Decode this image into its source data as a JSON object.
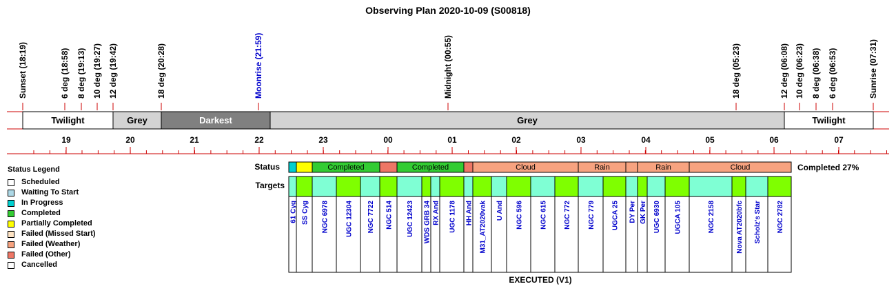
{
  "title": "Observing Plan 2020-10-09 (S00818)",
  "events": [
    {
      "label": "Sunset (18:19)",
      "color": "#000000"
    },
    {
      "label": "6 deg (18:58)",
      "color": "#000000"
    },
    {
      "label": "8 deg (19:13)",
      "color": "#000000"
    },
    {
      "label": "10 deg (19:27)",
      "color": "#000000"
    },
    {
      "label": "12 deg (19:42)",
      "color": "#000000"
    },
    {
      "label": "18 deg (20:28)",
      "color": "#000000"
    },
    {
      "label": "Moonrise (21:59)",
      "color": "#0000cc"
    },
    {
      "label": "Midnight (00:55)",
      "color": "#000000"
    },
    {
      "label": "18 deg (05:23)",
      "color": "#000000"
    },
    {
      "label": "12 deg (06:08)",
      "color": "#000000"
    },
    {
      "label": "10 deg (06:23)",
      "color": "#000000"
    },
    {
      "label": "8 deg (06:38)",
      "color": "#000000"
    },
    {
      "label": "6 deg (06:53)",
      "color": "#000000"
    },
    {
      "label": "Sunrise (07:31)",
      "color": "#000000"
    }
  ],
  "bands": [
    {
      "label": "Twilight",
      "color": "#ffffff",
      "text_color": "#000000"
    },
    {
      "label": "Grey",
      "color": "#d3d3d3",
      "text_color": "#000000"
    },
    {
      "label": "Darkest",
      "color": "#808080",
      "text_color": "#ffffff"
    },
    {
      "label": "Grey",
      "color": "#d3d3d3",
      "text_color": "#000000"
    },
    {
      "label": "Twilight",
      "color": "#ffffff",
      "text_color": "#000000"
    }
  ],
  "hours": [
    "19",
    "20",
    "21",
    "22",
    "23",
    "00",
    "01",
    "02",
    "03",
    "04",
    "05",
    "06",
    "07"
  ],
  "status_label": "Status",
  "targets_label": "Targets",
  "completed_text": "Completed 27%",
  "executed_label": "EXECUTED (V1)",
  "status_segments": [
    {
      "label": "",
      "color": "#00d0d0"
    },
    {
      "label": "",
      "color": "#ffff00"
    },
    {
      "label": "Completed",
      "color": "#33cc33"
    },
    {
      "label": "",
      "color": "#ee7766"
    },
    {
      "label": "Completed",
      "color": "#33cc33"
    },
    {
      "label": "",
      "color": "#ee7766"
    },
    {
      "label": "Cloud",
      "color": "#f7a380"
    },
    {
      "label": "Rain",
      "color": "#f7a380"
    },
    {
      "label": "",
      "color": "#f7a380"
    },
    {
      "label": "Rain",
      "color": "#f7a380"
    },
    {
      "label": "Cloud",
      "color": "#f7a380"
    }
  ],
  "targets": [
    {
      "name": "61 Cyg",
      "color": "#7fffd4"
    },
    {
      "name": "SS Cyg",
      "color": "#7fff00"
    },
    {
      "name": "NGC 6978",
      "color": "#7fffd4"
    },
    {
      "name": "UGC 12304",
      "color": "#7fff00"
    },
    {
      "name": "NGC 7722",
      "color": "#7fffd4"
    },
    {
      "name": "NGC 514",
      "color": "#7fff00"
    },
    {
      "name": "UGC 12423",
      "color": "#7fffd4"
    },
    {
      "name": "WDS GRB 34",
      "color": "#7fff00"
    },
    {
      "name": "RX And",
      "color": "#7fffd4"
    },
    {
      "name": "UGC 1178",
      "color": "#7fff00"
    },
    {
      "name": "HH And",
      "color": "#7fffd4"
    },
    {
      "name": "M31_AT2020vak",
      "color": "#7fff00"
    },
    {
      "name": "U And",
      "color": "#7fffd4"
    },
    {
      "name": "NGC 596",
      "color": "#7fff00"
    },
    {
      "name": "NGC 615",
      "color": "#7fffd4"
    },
    {
      "name": "NGC 772",
      "color": "#7fff00"
    },
    {
      "name": "NGC 779",
      "color": "#7fffd4"
    },
    {
      "name": "UGCA 25",
      "color": "#7fff00"
    },
    {
      "name": "DY Per",
      "color": "#7fffd4"
    },
    {
      "name": "GK Per",
      "color": "#7fff00"
    },
    {
      "name": "UGC 6930",
      "color": "#7fffd4"
    },
    {
      "name": "UGCA 105",
      "color": "#7fff00"
    },
    {
      "name": "NGC 2158",
      "color": "#7fffd4"
    },
    {
      "name": "Nova AT2020bfc",
      "color": "#7fff00"
    },
    {
      "name": "Scholz's Star",
      "color": "#7fffd4"
    },
    {
      "name": "NGC 2782",
      "color": "#7fff00"
    }
  ],
  "legend": {
    "title": "Status Legend",
    "items": [
      {
        "label": "Scheduled",
        "color": "#ffffff"
      },
      {
        "label": "Waiting To Start",
        "color": "#add8e6"
      },
      {
        "label": "In Progress",
        "color": "#00d0d0"
      },
      {
        "label": "Completed",
        "color": "#33cc33"
      },
      {
        "label": "Partially Completed",
        "color": "#ffff00"
      },
      {
        "label": "Failed (Missed Start)",
        "color": "#ffe4c4"
      },
      {
        "label": "Failed (Weather)",
        "color": "#f7a380"
      },
      {
        "label": "Failed (Other)",
        "color": "#ee7766"
      },
      {
        "label": "Cancelled",
        "color": "#ffffff"
      }
    ]
  },
  "colors": {
    "axis_red": "#cc0000",
    "target_text": "#0000cc"
  }
}
